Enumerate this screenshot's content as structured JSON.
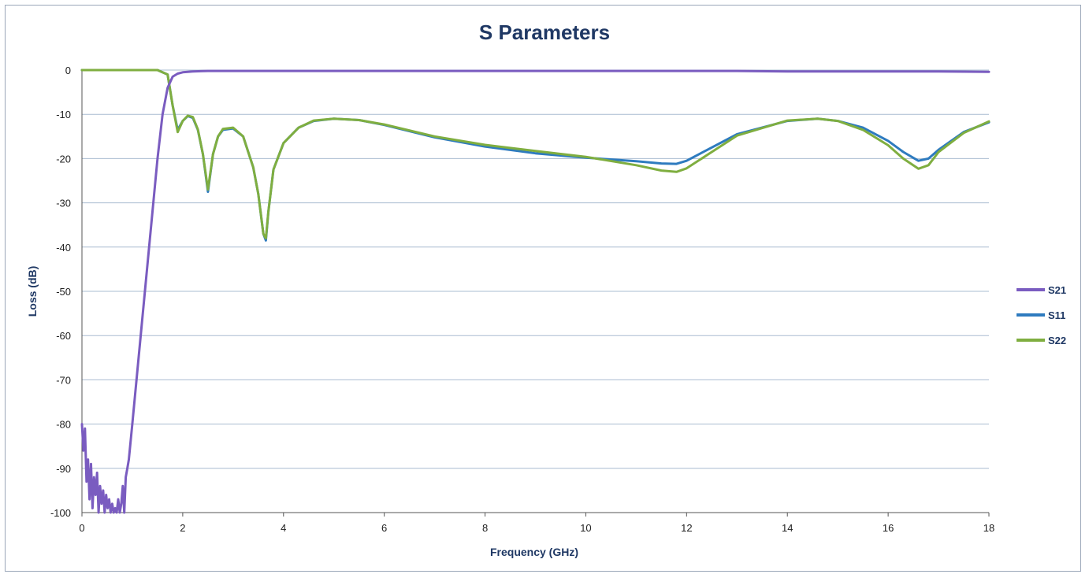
{
  "chart_data": {
    "type": "line",
    "title": "S Parameters",
    "xlabel": "Frequency (GHz)",
    "ylabel": "Loss (dB)",
    "xlim": [
      0,
      18
    ],
    "ylim": [
      -100,
      0
    ],
    "xticks": [
      0,
      2,
      4,
      6,
      8,
      10,
      12,
      14,
      16,
      18
    ],
    "yticks": [
      0,
      -10,
      -20,
      -30,
      -40,
      -50,
      -60,
      -70,
      -80,
      -90,
      -100
    ],
    "grid": "horizontal",
    "legend_position": "right",
    "series": [
      {
        "name": "S21",
        "color": "#7a5cc0",
        "x": [
          0,
          0.03,
          0.06,
          0.09,
          0.12,
          0.15,
          0.18,
          0.21,
          0.24,
          0.27,
          0.3,
          0.33,
          0.36,
          0.39,
          0.42,
          0.45,
          0.48,
          0.51,
          0.54,
          0.57,
          0.6,
          0.63,
          0.66,
          0.69,
          0.72,
          0.75,
          0.78,
          0.81,
          0.84,
          0.87,
          0.9,
          0.93,
          1.0,
          1.1,
          1.2,
          1.3,
          1.4,
          1.5,
          1.6,
          1.7,
          1.8,
          1.9,
          2.0,
          2.2,
          2.5,
          3,
          4,
          5,
          6,
          7,
          8,
          9,
          10,
          11,
          12,
          13,
          14,
          15,
          16,
          17,
          18
        ],
        "y": [
          -80,
          -86,
          -81,
          -93,
          -88,
          -97,
          -89,
          -99,
          -92,
          -96,
          -91,
          -100,
          -94,
          -98,
          -95,
          -100,
          -96,
          -99,
          -97,
          -100,
          -98,
          -100,
          -99,
          -100,
          -97,
          -100,
          -98,
          -94,
          -100,
          -92,
          -90,
          -88,
          -80,
          -68,
          -56,
          -44,
          -32,
          -20,
          -10,
          -4,
          -1.5,
          -0.8,
          -0.5,
          -0.3,
          -0.2,
          -0.2,
          -0.2,
          -0.2,
          -0.2,
          -0.2,
          -0.2,
          -0.2,
          -0.2,
          -0.2,
          -0.2,
          -0.2,
          -0.3,
          -0.3,
          -0.3,
          -0.3,
          -0.4
        ]
      },
      {
        "name": "S11",
        "color": "#2e7bbf",
        "x": [
          0,
          1,
          1.5,
          1.7,
          1.8,
          1.9,
          2.0,
          2.1,
          2.2,
          2.3,
          2.4,
          2.5,
          2.6,
          2.7,
          2.8,
          3.0,
          3.2,
          3.4,
          3.5,
          3.6,
          3.65,
          3.7,
          3.8,
          4.0,
          4.3,
          4.6,
          5.0,
          5.5,
          6.0,
          7.0,
          8.0,
          9.0,
          10.0,
          11.0,
          11.5,
          11.8,
          12.0,
          12.5,
          13.0,
          14.0,
          14.6,
          15.0,
          15.5,
          16.0,
          16.3,
          16.6,
          16.8,
          17.0,
          17.5,
          18.0
        ],
        "y": [
          0,
          0,
          0,
          -1,
          -8,
          -13.5,
          -11.5,
          -10.4,
          -10.8,
          -13.5,
          -19,
          -27.5,
          -19,
          -15,
          -13.5,
          -13.2,
          -15,
          -22,
          -28,
          -37,
          -38.5,
          -32,
          -22.5,
          -16.5,
          -13,
          -11.5,
          -11,
          -11.3,
          -12.4,
          -15.2,
          -17.3,
          -18.8,
          -19.8,
          -20.6,
          -21.1,
          -21.2,
          -20.5,
          -17.5,
          -14.5,
          -11.5,
          -11,
          -11.5,
          -13,
          -16,
          -18.5,
          -20.5,
          -20,
          -18,
          -14,
          -11.8
        ]
      },
      {
        "name": "S22",
        "color": "#7fae40",
        "x": [
          0,
          1,
          1.5,
          1.7,
          1.8,
          1.9,
          2.0,
          2.1,
          2.2,
          2.3,
          2.4,
          2.5,
          2.6,
          2.7,
          2.8,
          3.0,
          3.2,
          3.4,
          3.5,
          3.6,
          3.65,
          3.7,
          3.8,
          4.0,
          4.3,
          4.6,
          5.0,
          5.5,
          6.0,
          7.0,
          8.0,
          9.0,
          10.0,
          11.0,
          11.5,
          11.8,
          12.0,
          12.5,
          13.0,
          14.0,
          14.6,
          15.0,
          15.5,
          16.0,
          16.3,
          16.6,
          16.8,
          17.0,
          17.5,
          18.0
        ],
        "y": [
          0,
          0,
          0,
          -1,
          -8,
          -14,
          -11.5,
          -10.3,
          -10.6,
          -13.4,
          -19,
          -27,
          -19,
          -15,
          -13.3,
          -13,
          -15,
          -22,
          -28,
          -37,
          -38,
          -32,
          -22.5,
          -16.5,
          -13,
          -11.4,
          -11,
          -11.3,
          -12.3,
          -15,
          -16.9,
          -18.3,
          -19.6,
          -21.5,
          -22.7,
          -23,
          -22.2,
          -18.5,
          -14.8,
          -11.4,
          -11,
          -11.5,
          -13.5,
          -17,
          -20,
          -22.3,
          -21.5,
          -18.5,
          -14.2,
          -11.6
        ]
      }
    ]
  }
}
